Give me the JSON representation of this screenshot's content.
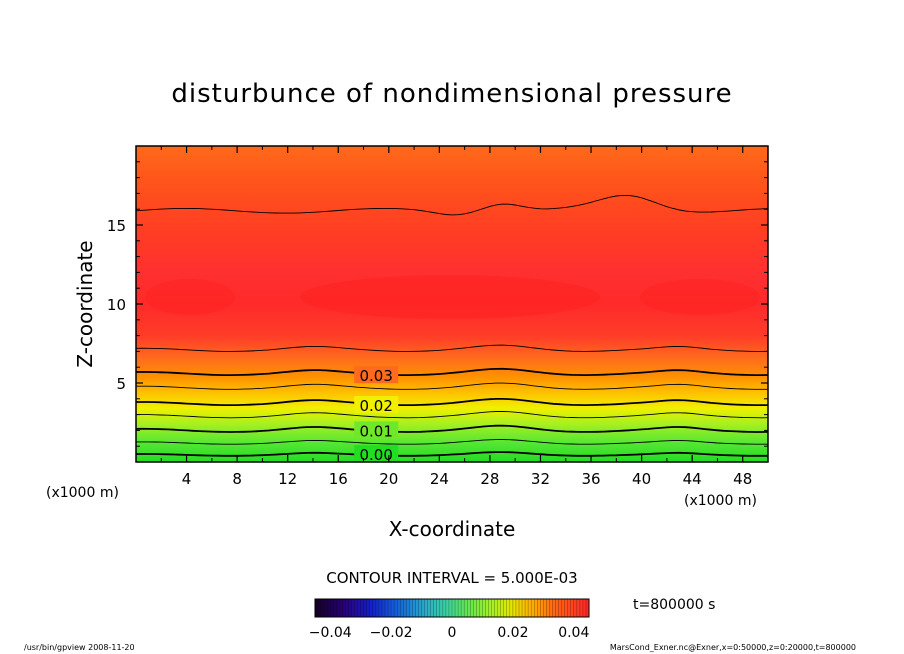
{
  "chart_data": {
    "type": "heatmap",
    "title": "disturbunce of nondimensional pressure",
    "xlabel": "X-coordinate",
    "ylabel": "Z-coordinate",
    "x_unit_left": "(x1000 m)",
    "x_unit_right": "(x1000 m)",
    "xlim": [
      0,
      50
    ],
    "ylim": [
      0,
      20
    ],
    "x_ticks": [
      4,
      8,
      12,
      16,
      20,
      24,
      28,
      32,
      36,
      40,
      44,
      48
    ],
    "y_ticks": [
      5,
      10,
      15
    ],
    "contour_interval_text": "CONTOUR INTERVAL = 5.000E-03",
    "contour_labels": [
      {
        "text": "0.03",
        "x": 17.5,
        "z": 5.5
      },
      {
        "text": "0.02",
        "x": 17.5,
        "z": 3.6
      },
      {
        "text": "0.01",
        "x": 17.5,
        "z": 2.0
      },
      {
        "text": "0.00",
        "x": 17.5,
        "z": 0.5
      }
    ],
    "contour_lines": [
      {
        "value": 0.0,
        "base_z": 0.45,
        "amp": 0.12,
        "bold": true
      },
      {
        "value": 0.005,
        "base_z": 1.2,
        "amp": 0.15,
        "bold": false
      },
      {
        "value": 0.01,
        "base_z": 2.0,
        "amp": 0.2,
        "bold": true
      },
      {
        "value": 0.015,
        "base_z": 2.9,
        "amp": 0.2,
        "bold": false
      },
      {
        "value": 0.02,
        "base_z": 3.7,
        "amp": 0.2,
        "bold": true
      },
      {
        "value": 0.025,
        "base_z": 4.7,
        "amp": 0.2,
        "bold": false
      },
      {
        "value": 0.03,
        "base_z": 5.6,
        "amp": 0.2,
        "bold": true
      },
      {
        "value": 0.035,
        "base_z": 7.1,
        "amp": 0.2,
        "bold": false
      },
      {
        "value": 0.035,
        "base_z": 15.9,
        "amp": 0.5,
        "bold": false,
        "upper": true
      }
    ],
    "colorbar": {
      "min": -0.045,
      "max": 0.045,
      "tick_labels": [
        "−0.04",
        "−0.02",
        "0",
        "0.02",
        "0.04"
      ],
      "tick_values": [
        -0.04,
        -0.02,
        0,
        0.02,
        0.04
      ]
    },
    "time_label": "t=800000 s",
    "footer_left": "/usr/bin/gpview   2008-11-20",
    "footer_right": "MarsCond_Exner.nc@Exner,x=0:50000,z=0:20000,t=800000"
  }
}
